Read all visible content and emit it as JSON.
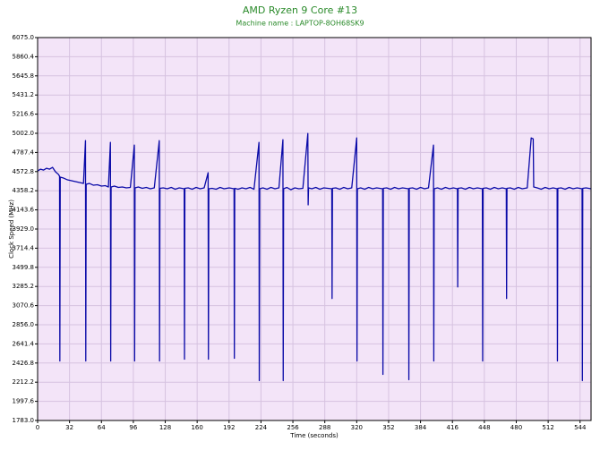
{
  "chart_data": {
    "type": "line",
    "title": "AMD Ryzen 9 Core #13",
    "subtitle": "Machine name : LAPTOP-8OH68SK9",
    "x_label": "Time (seconds)",
    "y_label": "Clock Speed (MHz)",
    "color": "#0a0aa8",
    "grid": true,
    "xlim": [
      0,
      555
    ],
    "ylim": [
      1783,
      6075
    ],
    "xticks": [
      0,
      32,
      64,
      96,
      128,
      160,
      192,
      224,
      256,
      288,
      320,
      352,
      384,
      416,
      448,
      480,
      512,
      544
    ],
    "yticks": [
      {
        "value": 1783,
        "label": "1783.0"
      },
      1997.6,
      2212.2,
      2426.8,
      2641.4,
      {
        "value": 2856,
        "label": "2856.0"
      },
      3070.6,
      3285.2,
      3499.8,
      3714.4,
      {
        "value": 3929,
        "label": "3929.0"
      },
      4143.6,
      4358.2,
      4572.8,
      4787.4,
      {
        "value": 5002,
        "label": "5002.0"
      },
      5216.6,
      5431.2,
      5645.8,
      5860.4,
      {
        "value": 6075,
        "label": "6075.0"
      }
    ],
    "x": [
      0,
      3,
      6,
      9,
      12,
      15,
      18,
      21,
      22,
      22.3,
      22.7,
      26,
      30,
      34,
      38,
      42,
      46,
      48,
      48.3,
      48.7,
      52,
      56,
      60,
      64,
      68,
      71,
      73,
      73.3,
      73.7,
      77,
      81,
      85,
      89,
      93,
      97,
      97.3,
      97.7,
      101,
      105,
      109,
      113,
      117,
      122,
      122.3,
      122.7,
      126,
      130,
      134,
      138,
      142,
      147,
      147.3,
      147.7,
      151,
      155,
      159,
      163,
      167,
      171,
      171.3,
      171.7,
      175,
      179,
      183,
      187,
      192,
      197,
      197.3,
      197.7,
      201,
      205,
      209,
      213,
      217,
      222,
      222.3,
      222.7,
      226,
      230,
      234,
      238,
      242,
      246,
      246.3,
      246.7,
      250,
      254,
      258,
      262,
      266,
      271,
      271.3,
      271.7,
      275,
      279,
      283,
      287,
      291,
      295,
      295.3,
      295.7,
      299,
      303,
      307,
      311,
      315,
      320,
      320.3,
      320.7,
      324,
      328,
      332,
      336,
      340,
      346,
      346.3,
      346.7,
      350,
      354,
      358,
      362,
      366,
      372,
      372.3,
      372.7,
      376,
      380,
      384,
      388,
      392,
      397,
      397.3,
      397.7,
      401,
      405,
      409,
      413,
      417,
      421,
      421.3,
      421.7,
      425,
      429,
      433,
      437,
      441,
      446,
      446.3,
      446.7,
      450,
      454,
      458,
      462,
      466,
      470,
      470.3,
      470.7,
      474,
      478,
      482,
      486,
      491,
      495,
      497,
      497.5,
      501,
      505,
      509,
      513,
      517,
      521,
      521.3,
      521.7,
      525,
      529,
      533,
      537,
      541,
      546,
      546.3,
      546.7,
      550,
      555
    ],
    "values": [
      4580,
      4600,
      4590,
      4610,
      4600,
      4620,
      4570,
      4540,
      4520,
      2450,
      4510,
      4500,
      4480,
      4470,
      4460,
      4450,
      4440,
      4920,
      2450,
      4430,
      4440,
      4420,
      4425,
      4410,
      4415,
      4400,
      4900,
      2450,
      4400,
      4410,
      4395,
      4400,
      4390,
      4395,
      4870,
      2450,
      4390,
      4400,
      4385,
      4395,
      4380,
      4390,
      4920,
      2450,
      4385,
      4390,
      4380,
      4395,
      4375,
      4390,
      4380,
      2470,
      4385,
      4390,
      4375,
      4395,
      4380,
      4390,
      4560,
      2470,
      4380,
      4385,
      4375,
      4395,
      4380,
      4390,
      4380,
      2480,
      4385,
      4375,
      4390,
      4380,
      4395,
      4375,
      4900,
      2230,
      4380,
      4390,
      4375,
      4395,
      4380,
      4390,
      4930,
      2230,
      4380,
      4395,
      4370,
      4390,
      4380,
      4385,
      5000,
      4200,
      4390,
      4380,
      4395,
      4375,
      4390,
      4385,
      4380,
      3150,
      4385,
      4390,
      4375,
      4395,
      4380,
      4390,
      4950,
      2450,
      4380,
      4390,
      4375,
      4395,
      4380,
      4390,
      4380,
      2300,
      4385,
      4390,
      4375,
      4395,
      4380,
      4390,
      4380,
      2240,
      4385,
      4390,
      4375,
      4395,
      4380,
      4390,
      4870,
      2450,
      4380,
      4390,
      4375,
      4395,
      4380,
      4390,
      4380,
      3280,
      4385,
      4390,
      4375,
      4395,
      4380,
      4390,
      4380,
      2450,
      4385,
      4390,
      4375,
      4395,
      4380,
      4390,
      4380,
      3150,
      4385,
      4390,
      4375,
      4395,
      4380,
      4390,
      4950,
      4940,
      4400,
      4390,
      4375,
      4395,
      4380,
      4390,
      4380,
      2450,
      4385,
      4390,
      4375,
      4395,
      4380,
      4390,
      4380,
      2230,
      4385,
      4390,
      4380
    ]
  }
}
